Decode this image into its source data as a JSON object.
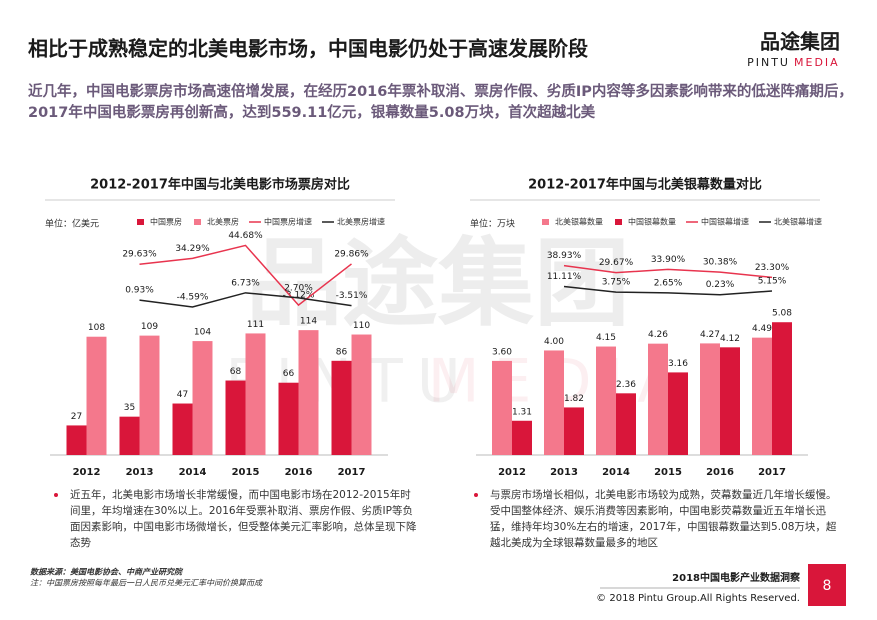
{
  "header": {
    "title": "相比于成熟稳定的北美电影市场，中国电影仍处于高速发展阶段",
    "logo": "品途集团",
    "logo_sub_a": "PINTU",
    "logo_sub_b": "MEDIA"
  },
  "intro": "近几年，中国电影票房市场高速倍增发展，在经历2016年票补取消、票房作假、劣质IP内容等多因素影响带来的低迷阵痛期后，2017年中国电影票房再创新高，达到559.11亿元，银幕数量5.08万块，首次超越北美",
  "watermark": {
    "main": "品途集团",
    "sub_a": "PINTU",
    "sub_b": "MEDIA"
  },
  "chart_data": [
    {
      "type": "bar",
      "title": "2012-2017年中国与北美电影市场票房对比",
      "unit": "单位：亿美元",
      "categories": [
        "2012",
        "2013",
        "2014",
        "2015",
        "2016",
        "2017"
      ],
      "ylim": [
        0,
        210
      ],
      "y2lim": [
        -123,
        61
      ],
      "series": [
        {
          "name": "中国票房",
          "color": "#d9163a",
          "values": [
            27,
            35,
            47,
            68,
            66,
            86
          ]
        },
        {
          "name": "北美票房",
          "color": "#f4788c",
          "values": [
            108,
            109,
            104,
            111,
            114,
            110
          ]
        },
        {
          "name": "中国票房增速",
          "color": "#e8344e",
          "type": "line",
          "axis": "y2",
          "values": [
            null,
            29.63,
            34.29,
            44.68,
            -3.12,
            29.86
          ],
          "value_labels": [
            null,
            "29.63%",
            "34.29%",
            "44.68%",
            "-3.12%",
            "29.86%"
          ]
        },
        {
          "name": "北美票房增速",
          "color": "#222222",
          "type": "line",
          "axis": "y2",
          "values": [
            null,
            0.93,
            -4.59,
            6.73,
            2.7,
            -3.51
          ],
          "value_labels": [
            null,
            "0.93%",
            "-4.59%",
            "6.73%",
            "2.70%",
            "-3.51%"
          ]
        }
      ]
    },
    {
      "type": "bar",
      "title": "2012-2017年中国与北美银幕数量对比",
      "unit": "单位：万块",
      "categories": [
        "2012",
        "2013",
        "2014",
        "2015",
        "2016",
        "2017"
      ],
      "ylim": [
        0,
        8.8
      ],
      "y2lim": [
        -213,
        93
      ],
      "series": [
        {
          "name": "北美银幕数量",
          "color": "#f4788c",
          "values": [
            3.6,
            4.0,
            4.15,
            4.26,
            4.27,
            4.49
          ],
          "value_labels": [
            "3.60",
            "4.00",
            "4.15",
            "4.26",
            "4.27",
            "4.49"
          ]
        },
        {
          "name": "中国银幕数量",
          "color": "#d9163a",
          "values": [
            1.31,
            1.82,
            2.36,
            3.16,
            4.12,
            5.08
          ],
          "value_labels": [
            "1.31",
            "1.82",
            "2.36",
            "3.16",
            "4.12",
            "5.08"
          ]
        },
        {
          "name": "中国银幕增速",
          "color": "#e8344e",
          "type": "line",
          "axis": "y2",
          "values": [
            null,
            38.93,
            29.67,
            33.9,
            30.38,
            23.3
          ],
          "value_labels": [
            null,
            "38.93%",
            "29.67%",
            "33.90%",
            "30.38%",
            "23.30%"
          ]
        },
        {
          "name": "北美银幕增速",
          "color": "#222222",
          "type": "line",
          "axis": "y2",
          "values": [
            null,
            11.11,
            3.75,
            2.65,
            0.23,
            5.15
          ],
          "value_labels": [
            null,
            "11.11%",
            "3.75%",
            "2.65%",
            "0.23%",
            "5.15%"
          ]
        }
      ]
    }
  ],
  "notes": [
    "近五年，北美电影市场增长非常缓慢，而中国电影市场在2012-2015年时间里，年均增速在30%以上。2016年受票补取消、票房作假、劣质IP等负面因素影响，中国电影市场微增长，但受整体美元汇率影响，总体呈现下降态势",
    "与票房市场增长相似，北美电影市场较为成熟，荧幕数量近几年增长缓慢。受中国整体经济、娱乐消费等因素影响，中国电影荧幕数量近五年增长迅猛，维持年均30%左右的增速，2017年，中国银幕数量达到5.08万块，超越北美成为全球银幕数量最多的地区"
  ],
  "source": "数据来源：美国电影协会、中商产业研究院",
  "source_note": "注：中国票房按照每年最后一日人民币兑美元汇率中间价换算而成",
  "footer": {
    "report": "2018中国电影产业数据洞察",
    "copyright": "© 2018 Pintu Group.All Rights Reserved.",
    "page": "8"
  }
}
